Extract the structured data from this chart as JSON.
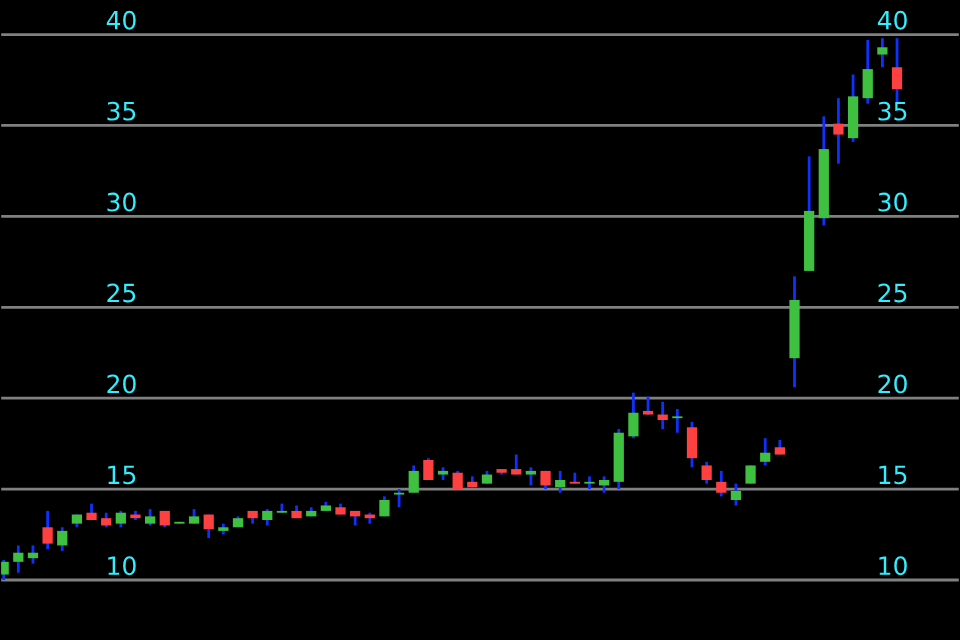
{
  "chart_data": {
    "type": "candlestick",
    "categories": [
      null,
      null,
      null,
      null,
      null,
      null,
      null,
      null,
      null,
      null,
      null,
      null,
      null,
      null,
      null,
      null,
      null,
      null,
      null,
      null,
      null,
      null,
      null,
      null,
      null,
      null,
      null,
      null,
      null,
      null,
      null,
      null,
      null,
      null,
      null,
      null,
      null,
      null,
      null,
      null,
      null,
      null,
      null,
      null,
      null,
      null,
      null,
      null,
      null,
      null,
      null,
      null,
      null,
      null,
      null,
      null,
      null,
      null,
      null,
      null,
      null,
      null
    ],
    "ohlc": [
      [
        10.3,
        11.1,
        10.0,
        11.0
      ],
      [
        11.0,
        11.9,
        10.4,
        11.5
      ],
      [
        11.2,
        11.9,
        10.9,
        11.5
      ],
      [
        12.9,
        13.8,
        11.7,
        12.0
      ],
      [
        11.9,
        12.9,
        11.6,
        12.7
      ],
      [
        13.1,
        13.6,
        12.9,
        13.6
      ],
      [
        13.7,
        14.2,
        13.3,
        13.3
      ],
      [
        13.4,
        13.7,
        12.9,
        13.0
      ],
      [
        13.1,
        13.8,
        12.9,
        13.7
      ],
      [
        13.6,
        13.8,
        13.3,
        13.4
      ],
      [
        13.1,
        13.9,
        13.0,
        13.5
      ],
      [
        13.8,
        13.8,
        12.9,
        13.0
      ],
      [
        13.1,
        13.2,
        13.1,
        13.2
      ],
      [
        13.1,
        13.9,
        13.1,
        13.5
      ],
      [
        13.6,
        13.6,
        12.3,
        12.8
      ],
      [
        12.7,
        13.1,
        12.5,
        12.9
      ],
      [
        12.9,
        13.5,
        12.9,
        13.4
      ],
      [
        13.8,
        13.8,
        13.1,
        13.4
      ],
      [
        13.3,
        13.9,
        13.0,
        13.8
      ],
      [
        13.7,
        14.2,
        13.7,
        13.8
      ],
      [
        13.8,
        14.1,
        13.4,
        13.4
      ],
      [
        13.5,
        14.0,
        13.5,
        13.8
      ],
      [
        13.8,
        14.3,
        13.8,
        14.1
      ],
      [
        14.0,
        14.2,
        13.6,
        13.6
      ],
      [
        13.8,
        13.8,
        13.0,
        13.5
      ],
      [
        13.6,
        13.7,
        13.1,
        13.4
      ],
      [
        13.5,
        14.6,
        13.5,
        14.4
      ],
      [
        14.7,
        15.0,
        14.0,
        14.8
      ],
      [
        14.8,
        16.3,
        14.8,
        16.0
      ],
      [
        16.6,
        16.7,
        15.5,
        15.5
      ],
      [
        15.8,
        16.2,
        15.5,
        16.0
      ],
      [
        15.9,
        16.0,
        15.0,
        15.0
      ],
      [
        15.4,
        15.7,
        15.1,
        15.1
      ],
      [
        15.3,
        16.0,
        15.3,
        15.8
      ],
      [
        16.1,
        16.1,
        15.8,
        15.9
      ],
      [
        16.1,
        16.9,
        15.8,
        15.8
      ],
      [
        15.8,
        16.2,
        15.2,
        16.0
      ],
      [
        16.0,
        16.0,
        15.0,
        15.2
      ],
      [
        15.1,
        16.0,
        14.8,
        15.5
      ],
      [
        15.4,
        15.9,
        15.3,
        15.3
      ],
      [
        15.3,
        15.7,
        15.0,
        15.4
      ],
      [
        15.2,
        15.7,
        14.8,
        15.5
      ],
      [
        15.4,
        18.3,
        15.0,
        18.1
      ],
      [
        17.9,
        20.3,
        17.8,
        19.2
      ],
      [
        19.3,
        20.1,
        19.1,
        19.1
      ],
      [
        19.1,
        19.8,
        18.3,
        18.8
      ],
      [
        18.9,
        19.4,
        18.1,
        19.0
      ],
      [
        18.4,
        18.7,
        16.2,
        16.7
      ],
      [
        16.3,
        16.5,
        15.3,
        15.5
      ],
      [
        15.4,
        16.0,
        14.6,
        14.8
      ],
      [
        14.4,
        15.3,
        14.1,
        14.9
      ],
      [
        15.3,
        16.3,
        15.3,
        16.3
      ],
      [
        16.5,
        17.8,
        16.3,
        17.0
      ],
      [
        17.3,
        17.7,
        16.9,
        16.9
      ],
      [
        22.2,
        26.7,
        20.6,
        25.4
      ],
      [
        27.0,
        33.3,
        27.0,
        30.3
      ],
      [
        29.9,
        35.5,
        29.5,
        33.7
      ],
      [
        35.1,
        36.5,
        32.9,
        34.5
      ],
      [
        34.3,
        37.8,
        34.1,
        36.6
      ],
      [
        36.5,
        39.7,
        36.2,
        38.1
      ],
      [
        38.9,
        39.8,
        38.2,
        39.3
      ],
      [
        38.2,
        39.8,
        36.2,
        37.0
      ]
    ],
    "colors": [
      "#40c040",
      "#40c040",
      "#40c040",
      "#ff4040",
      "#40c040",
      "#40c040",
      "#ff4040",
      "#ff4040",
      "#40c040",
      "#ff4040",
      "#40c040",
      "#ff4040",
      "#40c040",
      "#40c040",
      "#ff4040",
      "#40c040",
      "#40c040",
      "#ff4040",
      "#40c040",
      "#40c040",
      "#ff4040",
      "#40c040",
      "#40c040",
      "#ff4040",
      "#ff4040",
      "#ff4040",
      "#40c040",
      "#40c040",
      "#40c040",
      "#ff4040",
      "#40c040",
      "#ff4040",
      "#ff4040",
      "#40c040",
      "#ff4040",
      "#ff4040",
      "#40c040",
      "#ff4040",
      "#40c040",
      "#ff4040",
      "#40c040",
      "#40c040",
      "#40c040",
      "#40c040",
      "#ff4040",
      "#ff4040",
      "#40c040",
      "#ff4040",
      "#ff4040",
      "#ff4040",
      "#40c040",
      "#40c040",
      "#40c040",
      "#ff4040",
      "#40c040",
      "#40c040",
      "#40c040",
      "#ff4040",
      "#40c040",
      "#40c040",
      "#40c040",
      "#ff4040"
    ],
    "ylim": [
      6.7,
      41.9
    ],
    "yticks": [
      10,
      15,
      20,
      25,
      30,
      35,
      40
    ],
    "y2lim": [
      6.7,
      41.9
    ],
    "y2ticks": [
      10,
      15,
      20,
      25,
      30,
      35,
      40
    ],
    "grid": "y"
  }
}
